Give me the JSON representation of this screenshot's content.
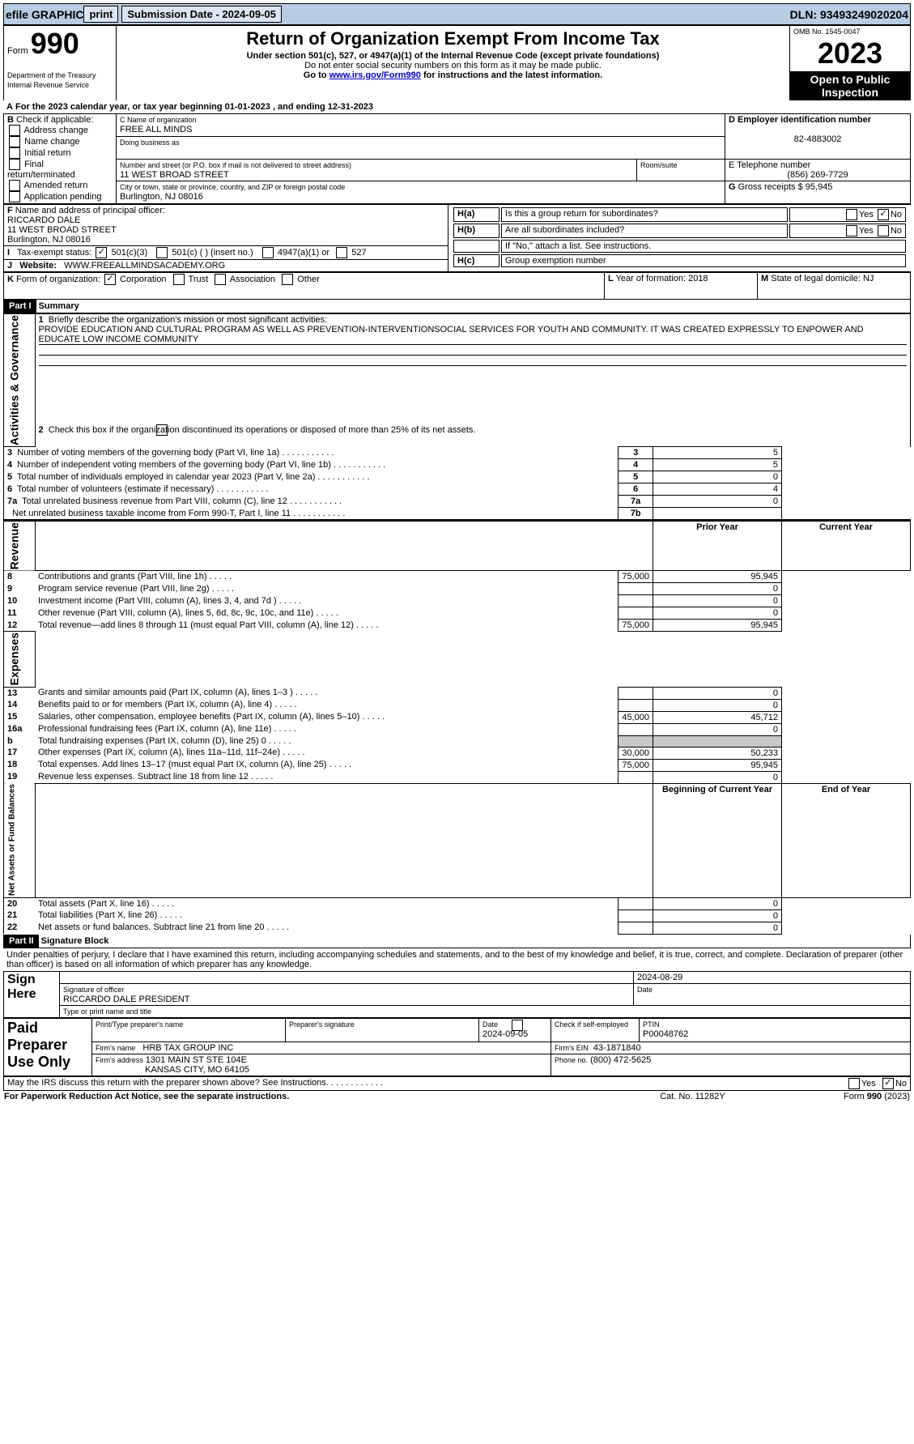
{
  "topbar": {
    "efile": "efile GRAPHIC",
    "print": "print",
    "submission": "Submission Date - 2024-09-05",
    "dln": "DLN: 93493249020204"
  },
  "header": {
    "form": "Form",
    "form_num": "990",
    "title": "Return of Organization Exempt From Income Tax",
    "subtitle1": "Under section 501(c), 527, or 4947(a)(1) of the Internal Revenue Code (except private foundations)",
    "subtitle2": "Do not enter social security numbers on this form as it may be made public.",
    "subtitle3_a": "Go to ",
    "subtitle3_link": "www.irs.gov/Form990",
    "subtitle3_b": " for instructions and the latest information.",
    "omb": "OMB No. 1545-0047",
    "year": "2023",
    "open_public": "Open to Public Inspection",
    "dept": "Department of the Treasury Internal Revenue Service"
  },
  "periodA": "For the 2023 calendar year, or tax year beginning 01-01-2023    , and ending 12-31-2023",
  "boxB": {
    "label": "B",
    "text": "Check if applicable:",
    "items": [
      "Address change",
      "Name change",
      "Initial return",
      "Final return/terminated",
      "Amended return",
      "Application pending"
    ]
  },
  "boxC": {
    "label_name": "C Name of organization",
    "name": "FREE ALL MINDS",
    "dba_label": "Doing business as",
    "addr_label": "Number and street (or P.O. box if mail is not delivered to street address)",
    "addr": "11 WEST BROAD STREET",
    "room_label": "Room/suite",
    "city_label": "City or town, state or province, country, and ZIP or foreign postal code",
    "city": "Burlington, NJ  08016"
  },
  "boxD": {
    "label": "D Employer identification number",
    "val": "82-4883002"
  },
  "boxE": {
    "label": "E Telephone number",
    "val": "(856) 269-7729"
  },
  "boxG": {
    "label": "G",
    "text": "Gross receipts $",
    "val": "95,945"
  },
  "boxF": {
    "label": "F",
    "text": "Name and address of principal officer:",
    "name": "RICCARDO DALE",
    "addr": "11 WEST BROAD STREET",
    "city": "Burlington, NJ  08016"
  },
  "boxH": {
    "a_label": "H(a)",
    "a_text": "Is this a group return for subordinates?",
    "a_no": "No",
    "b_label": "H(b)",
    "b_text": "Are all subordinates included?",
    "b_note": "If \"No,\" attach a list. See instructions.",
    "c_label": "H(c)",
    "c_text": "Group exemption number",
    "yes": "Yes",
    "no": "No"
  },
  "boxI": {
    "label": "I",
    "text": "Tax-exempt status:",
    "c3": "501(c)(3)",
    "c": "501(c) (  ) (insert no.)",
    "a1": "4947(a)(1) or",
    "s527": "527"
  },
  "boxJ": {
    "label": "J",
    "text": "Website:",
    "val": "WWW.FREEALLMINDSACADEMY.ORG"
  },
  "boxK": {
    "label": "K",
    "text": "Form of organization:",
    "corp": "Corporation",
    "trust": "Trust",
    "assoc": "Association",
    "other": "Other"
  },
  "boxL": {
    "label": "L",
    "text": "Year of formation:",
    "val": "2018"
  },
  "boxM": {
    "label": "M",
    "text": "State of legal domicile:",
    "val": "NJ"
  },
  "part1": {
    "hdr_num": "Part I",
    "hdr_title": "Summary",
    "line1_label": "1",
    "line1_text": "Briefly describe the organization's mission or most significant activities:",
    "line1_val": "PROVIDE EDUCATION AND CULTURAL PROGRAM AS WELL AS PREVENTION-INTERVENTIONSOCIAL SERVICES FOR YOUTH AND COMMUNITY. IT WAS CREATED EXPRESSLY TO ENPOWER AND EDUCATE LOW INCOME COMMUNITY",
    "line2": "Check this box         if the organization discontinued its operations or disposed of more than 25% of its net assets.",
    "sidebars": {
      "gov": "Activities & Governance",
      "rev": "Revenue",
      "exp": "Expenses",
      "net": "Net Assets or Fund Balances"
    },
    "col_prior": "Prior Year",
    "col_current": "Current Year",
    "col_begin": "Beginning of Current Year",
    "col_end": "End of Year",
    "rows_gov": [
      {
        "n": "3",
        "t": "Number of voting members of the governing body (Part VI, line 1a)",
        "box": "3",
        "v": "5"
      },
      {
        "n": "4",
        "t": "Number of independent voting members of the governing body (Part VI, line 1b)",
        "box": "4",
        "v": "5"
      },
      {
        "n": "5",
        "t": "Total number of individuals employed in calendar year 2023 (Part V, line 2a)",
        "box": "5",
        "v": "0"
      },
      {
        "n": "6",
        "t": "Total number of volunteers (estimate if necessary)",
        "box": "6",
        "v": "4"
      },
      {
        "n": "7a",
        "t": "Total unrelated business revenue from Part VIII, column (C), line 12",
        "box": "7a",
        "v": "0"
      },
      {
        "n": "",
        "t": "Net unrelated business taxable income from Form 990-T, Part I, line 11",
        "box": "7b",
        "v": ""
      }
    ],
    "rows_rev": [
      {
        "n": "8",
        "t": "Contributions and grants (Part VIII, line 1h)",
        "p": "75,000",
        "c": "95,945"
      },
      {
        "n": "9",
        "t": "Program service revenue (Part VIII, line 2g)",
        "p": "",
        "c": "0"
      },
      {
        "n": "10",
        "t": "Investment income (Part VIII, column (A), lines 3, 4, and 7d )",
        "p": "",
        "c": "0"
      },
      {
        "n": "11",
        "t": "Other revenue (Part VIII, column (A), lines 5, 6d, 8c, 9c, 10c, and 11e)",
        "p": "",
        "c": "0"
      },
      {
        "n": "12",
        "t": "Total revenue—add lines 8 through 11 (must equal Part VIII, column (A), line 12)",
        "p": "75,000",
        "c": "95,945"
      }
    ],
    "rows_exp": [
      {
        "n": "13",
        "t": "Grants and similar amounts paid (Part IX, column (A), lines 1–3 )",
        "p": "",
        "c": "0"
      },
      {
        "n": "14",
        "t": "Benefits paid to or for members (Part IX, column (A), line 4)",
        "p": "",
        "c": "0"
      },
      {
        "n": "15",
        "t": "Salaries, other compensation, employee benefits (Part IX, column (A), lines 5–10)",
        "p": "45,000",
        "c": "45,712"
      },
      {
        "n": "16a",
        "t": "Professional fundraising fees (Part IX, column (A), line 11e)",
        "p": "",
        "c": "0"
      },
      {
        "n": "b",
        "t": "Total fundraising expenses (Part IX, column (D), line 25) 0",
        "p": "GRAY",
        "c": "GRAY"
      },
      {
        "n": "17",
        "t": "Other expenses (Part IX, column (A), lines 11a–11d, 11f–24e)",
        "p": "30,000",
        "c": "50,233"
      },
      {
        "n": "18",
        "t": "Total expenses. Add lines 13–17 (must equal Part IX, column (A), line 25)",
        "p": "75,000",
        "c": "95,945"
      },
      {
        "n": "19",
        "t": "Revenue less expenses. Subtract line 18 from line 12",
        "p": "",
        "c": "0"
      }
    ],
    "rows_net": [
      {
        "n": "20",
        "t": "Total assets (Part X, line 16)",
        "p": "",
        "c": "0"
      },
      {
        "n": "21",
        "t": "Total liabilities (Part X, line 26)",
        "p": "",
        "c": "0"
      },
      {
        "n": "22",
        "t": "Net assets or fund balances. Subtract line 21 from line 20",
        "p": "",
        "c": "0"
      }
    ]
  },
  "part2": {
    "hdr_num": "Part II",
    "hdr_title": "Signature Block",
    "decl": "Under penalties of perjury, I declare that I have examined this return, including accompanying schedules and statements, and to the best of my knowledge and belief, it is true, correct, and complete. Declaration of preparer (other than officer) is based on all information of which preparer has any knowledge.",
    "sign_here": "Sign Here",
    "sig_label": "Signature of officer",
    "date_label": "Date",
    "sig_date": "2024-08-29",
    "name_title": "RICCARDO DALE PRESIDENT",
    "type_label": "Type or print name and title",
    "paid": "Paid Preparer Use Only",
    "prep_name_label": "Print/Type preparer's name",
    "prep_sig_label": "Preparer's signature",
    "prep_date": "2024-09-05",
    "check_self": "Check          if self-employed",
    "ptin_label": "PTIN",
    "ptin": "P00048762",
    "firm_name_label": "Firm's name",
    "firm_name": "HRB TAX GROUP INC",
    "firm_ein_label": "Firm's EIN",
    "firm_ein": "43-1871840",
    "firm_addr_label": "Firm's address",
    "firm_addr1": "1301 MAIN ST STE 104E",
    "firm_addr2": "KANSAS CITY, MO  64105",
    "phone_label": "Phone no.",
    "phone": "(800) 472-5625",
    "discuss": "May the IRS discuss this return with the preparer shown above? See Instructions.",
    "yes": "Yes",
    "no": "No"
  },
  "footer": {
    "pra": "For Paperwork Reduction Act Notice, see the separate instructions.",
    "cat": "Cat. No. 11282Y",
    "form": "Form 990 (2023)"
  },
  "colors": {
    "topbar_bg": "#b8cce4",
    "btn_bg": "#dbe5f1",
    "black": "#000000",
    "gray": "#c8c8c8"
  }
}
